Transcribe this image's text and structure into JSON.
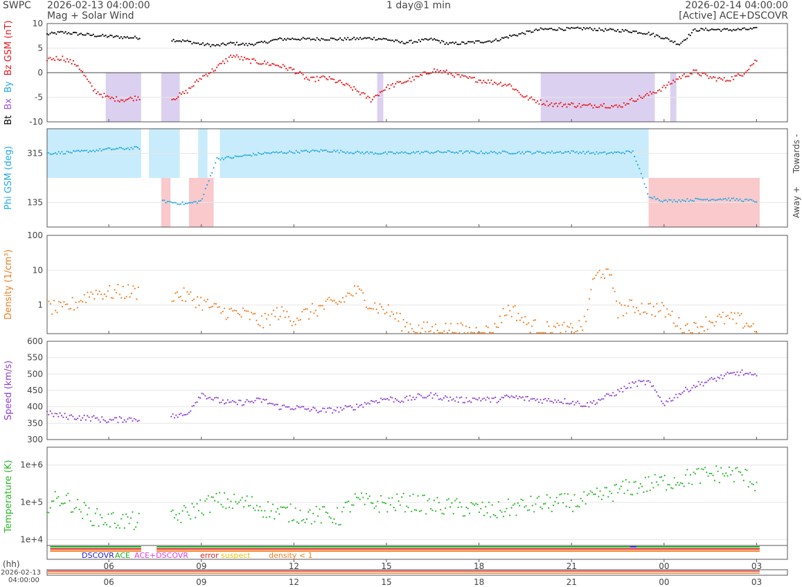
{
  "header": {
    "brand": "SWPC",
    "start_time": "2026-02-13 04:00:00",
    "subtitle": "Mag + Solar Wind",
    "span": "1 day@1 min",
    "end_time": "2026-02-14 04:00:00",
    "source": "[Active] ACE+DSCOVR"
  },
  "colors": {
    "bt": "#000000",
    "bz": "#e8161b",
    "bx": "#9b55d6",
    "by": "#1fa9e6",
    "phi": "#1fa9e6",
    "phi_towards_shade": "#c8ecfb",
    "phi_away_shade": "#f9c9cc",
    "bz_shade": "#dcd0f0",
    "density": "#f07c1e",
    "speed": "#8b3ed6",
    "temperature": "#26b526",
    "dscovr": "#2222cc",
    "ace": "#22aa22",
    "ace_dscovr": "#e040e0",
    "error": "#dd2222",
    "suspect": "#e8c410",
    "low_density": "#f07c1e"
  },
  "chart_data": [
    {
      "type": "scatter",
      "panel": "mag",
      "ylabel_parts": [
        "Bt",
        "Bx",
        "By",
        "Bz GSM (nT)"
      ],
      "ylim": [
        -10,
        10
      ],
      "yticks": [
        -10,
        -5,
        0,
        5,
        10
      ],
      "series": [
        {
          "name": "Bt",
          "x_hours": [
            0,
            0.5,
            1,
            1.5,
            2,
            2.5,
            3,
            3.5,
            4,
            4.5,
            5,
            5.5,
            6,
            6.5,
            7,
            7.5,
            8,
            8.5,
            9,
            9.5,
            10,
            10.5,
            11,
            11.5,
            12,
            12.5,
            13,
            13.5,
            14,
            14.5,
            15,
            15.5,
            16,
            16.5,
            17,
            17.5,
            18,
            18.5,
            19,
            19.5,
            20,
            20.5,
            21,
            21.5,
            22,
            22.5,
            23
          ],
          "values": [
            7.8,
            8.2,
            7.9,
            7.6,
            7.4,
            7.2,
            7.1,
            null,
            6.7,
            6.4,
            5.8,
            5.5,
            6.0,
            5.7,
            6.1,
            6.8,
            6.9,
            6.8,
            6.9,
            6.8,
            6.9,
            7.0,
            6.8,
            6.1,
            6.4,
            6.8,
            5.9,
            6.0,
            6.3,
            6.5,
            7.4,
            8.1,
            8.8,
            8.9,
            8.9,
            9.0,
            8.7,
            8.6,
            8.4,
            8.0,
            7.1,
            5.8,
            8.7,
            8.8,
            8.7,
            8.8,
            8.9
          ]
        },
        {
          "name": "Bz GSM",
          "x_hours": [
            0,
            0.5,
            1,
            1.5,
            2,
            2.5,
            3,
            3.5,
            4,
            4.5,
            5,
            5.5,
            6,
            6.5,
            7,
            7.5,
            8,
            8.5,
            9,
            9.5,
            10,
            10.5,
            11,
            11.5,
            12,
            12.5,
            13,
            13.5,
            14,
            14.5,
            15,
            15.5,
            16,
            16.5,
            17,
            17.5,
            18,
            18.5,
            19,
            19.5,
            20,
            20.5,
            21,
            21.5,
            22,
            22.5,
            23
          ],
          "values": [
            2.8,
            3.0,
            1.5,
            -3.5,
            -5.2,
            -5.5,
            -5.0,
            null,
            -5.5,
            -4.0,
            -1.0,
            1.0,
            3.5,
            2.5,
            2.0,
            1.5,
            0.5,
            -1.5,
            -1.0,
            -2.0,
            -3.5,
            -5.5,
            -3.0,
            -2.0,
            -1.0,
            0.5,
            0.0,
            -1.0,
            -1.5,
            -2.0,
            -2.5,
            -5.0,
            -6.0,
            -6.5,
            -6.5,
            -6.8,
            -6.5,
            -7.0,
            -5.5,
            -4.5,
            -3.0,
            -1.0,
            0.2,
            -1.0,
            -1.5,
            -0.5,
            2.6
          ]
        },
        {
          "name": "Bx",
          "x_hours": [],
          "values": []
        },
        {
          "name": "By",
          "x_hours": [],
          "values": []
        }
      ],
      "bz_south_shading_hours": [
        [
          1.9,
          3.05
        ],
        [
          3.7,
          4.3
        ],
        [
          10.7,
          10.9
        ],
        [
          16.0,
          19.7
        ],
        [
          20.2,
          20.4
        ]
      ]
    },
    {
      "type": "scatter",
      "panel": "phi",
      "ylabel": "Phi GSM (deg)",
      "yticks": [
        135,
        315
      ],
      "ylim": [
        45,
        405
      ],
      "right_labels": [
        "Towards -",
        "Away +"
      ],
      "x_hours": [
        0,
        1,
        2,
        3,
        3.3,
        3.7,
        4.5,
        5.0,
        5.5,
        6,
        7,
        8,
        9,
        10,
        11,
        12,
        13,
        14,
        15,
        16,
        17,
        18,
        19,
        19.5,
        20,
        21,
        22,
        23
      ],
      "values": [
        315,
        320,
        330,
        335,
        null,
        140,
        130,
        140,
        295,
        300,
        315,
        320,
        325,
        318,
        315,
        318,
        320,
        318,
        318,
        318,
        320,
        315,
        320,
        160,
        140,
        145,
        148,
        140
      ],
      "towards_shading_hours": [
        [
          0,
          3.05
        ],
        [
          3.3,
          4.3
        ],
        [
          4.9,
          5.2
        ],
        [
          5.6,
          19.5
        ]
      ],
      "away_shading_hours": [
        [
          3.7,
          4.0
        ],
        [
          4.6,
          5.4
        ],
        [
          19.5,
          23.1
        ]
      ]
    },
    {
      "type": "scatter",
      "panel": "density",
      "ylabel": "Density (1/cm³)",
      "yscale": "log",
      "ylim": [
        0.15,
        100
      ],
      "yticks": [
        1,
        10,
        100
      ],
      "x_hours": [
        0,
        0.5,
        1,
        1.5,
        2,
        2.5,
        3,
        3.5,
        4,
        4.5,
        5,
        5.5,
        6,
        6.5,
        7,
        7.5,
        8,
        8.5,
        9,
        9.5,
        10,
        10.5,
        11,
        11.5,
        12,
        12.5,
        13,
        13.5,
        14,
        14.5,
        15,
        15.5,
        16,
        16.5,
        17,
        17.5,
        18,
        18.5,
        19,
        19.5,
        20,
        20.5,
        21,
        21.5,
        22,
        22.5,
        23
      ],
      "values": [
        0.9,
        0.7,
        1.2,
        2.3,
        2.2,
        2.4,
        2.3,
        null,
        2.0,
        1.8,
        1.2,
        0.7,
        0.6,
        0.5,
        0.3,
        0.6,
        0.4,
        0.6,
        0.9,
        1.2,
        2.5,
        1.0,
        0.7,
        0.3,
        0.2,
        0.2,
        0.2,
        0.18,
        0.17,
        0.18,
        0.8,
        0.3,
        0.2,
        0.2,
        0.18,
        0.3,
        10,
        0.7,
        0.9,
        0.8,
        0.7,
        0.25,
        0.2,
        0.35,
        0.4,
        0.35,
        0.2
      ]
    },
    {
      "type": "scatter",
      "panel": "speed",
      "ylabel": "Speed (km/s)",
      "ylim": [
        300,
        600
      ],
      "yticks": [
        300,
        350,
        400,
        450,
        500,
        550,
        600
      ],
      "x_hours": [
        0,
        0.5,
        1,
        1.5,
        2,
        2.5,
        3,
        3.5,
        4,
        4.5,
        5,
        5.5,
        6,
        6.5,
        7,
        7.5,
        8,
        8.5,
        9,
        9.5,
        10,
        10.5,
        11,
        11.5,
        12,
        12.5,
        13,
        13.5,
        14,
        14.5,
        15,
        15.5,
        16,
        16.5,
        17,
        17.5,
        18,
        18.5,
        19,
        19.5,
        20,
        20.5,
        21,
        21.5,
        22,
        22.5,
        23
      ],
      "values": [
        380,
        372,
        368,
        365,
        358,
        362,
        364,
        null,
        370,
        375,
        440,
        420,
        410,
        415,
        420,
        400,
        398,
        392,
        388,
        392,
        400,
        415,
        425,
        420,
        430,
        435,
        425,
        420,
        425,
        420,
        430,
        425,
        420,
        420,
        415,
        405,
        425,
        445,
        470,
        475,
        410,
        440,
        465,
        480,
        495,
        505,
        490
      ]
    },
    {
      "type": "scatter",
      "panel": "temperature",
      "ylabel": "Temperature (K)",
      "yscale": "log",
      "ylim": [
        7000,
        3000000
      ],
      "ytick_labels": [
        "1e+4",
        "1e+5",
        "1e+6"
      ],
      "x_hours": [
        0,
        0.5,
        1,
        1.5,
        2,
        2.5,
        3,
        3.5,
        4,
        4.5,
        5,
        5.5,
        6,
        6.5,
        7,
        7.5,
        8,
        8.5,
        9,
        9.5,
        10,
        10.5,
        11,
        11.5,
        12,
        12.5,
        13,
        13.5,
        14,
        14.5,
        15,
        15.5,
        16,
        16.5,
        17,
        17.5,
        18,
        18.5,
        19,
        19.5,
        20,
        20.5,
        21,
        21.5,
        22,
        22.5,
        23
      ],
      "values": [
        90000,
        130000,
        70000,
        40000,
        33000,
        32000,
        30000,
        null,
        35000,
        50000,
        75000,
        110000,
        100000,
        95000,
        70000,
        55000,
        50000,
        45000,
        45000,
        40000,
        110000,
        95000,
        90000,
        100000,
        95000,
        80000,
        75000,
        70000,
        65000,
        55000,
        70000,
        80000,
        90000,
        95000,
        100000,
        110000,
        150000,
        200000,
        260000,
        300000,
        350000,
        400000,
        500000,
        550000,
        600000,
        550000,
        300000
      ]
    }
  ],
  "source_legend": {
    "dscovr": "DSCOVR",
    "ace": "ACE",
    "ace_dscovr": "ACE+DSCOVR",
    "error": "error",
    "suspect": "suspect",
    "low_density": "density < 1"
  },
  "time_axis": {
    "unit_label": "(hh)",
    "start_date": "2026-02-13",
    "start_clock": "04:00:00",
    "ticks": [
      "06",
      "09",
      "12",
      "15",
      "18",
      "21",
      "00",
      "03"
    ],
    "tick_hours": [
      2,
      5,
      8,
      11,
      14,
      17,
      20,
      23
    ]
  }
}
